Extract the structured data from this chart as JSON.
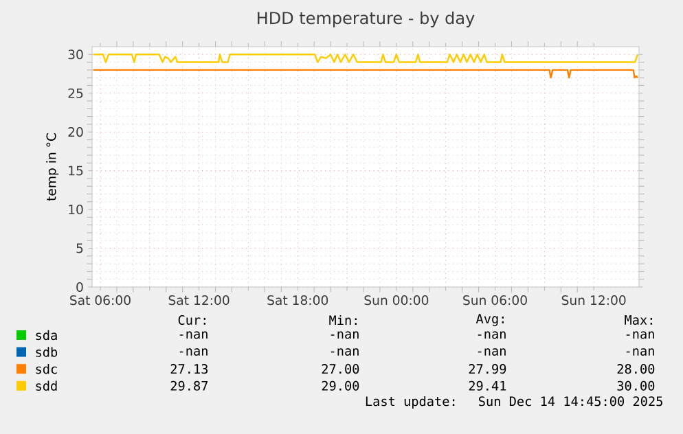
{
  "chart_data": {
    "type": "line",
    "title": "HDD temperature - by day",
    "ylabel": "temp in °C",
    "xlim": [
      "2025-12-13T05:30",
      "2025-12-14T14:45"
    ],
    "ylim": [
      0,
      31
    ],
    "xticks": [
      {
        "value": "2025-12-13T06:00",
        "label": "Sat 06:00"
      },
      {
        "value": "2025-12-13T09:00",
        "label": null
      },
      {
        "value": "2025-12-13T12:00",
        "label": "Sat 12:00"
      },
      {
        "value": "2025-12-13T15:00",
        "label": null
      },
      {
        "value": "2025-12-13T18:00",
        "label": "Sat 18:00"
      },
      {
        "value": "2025-12-13T21:00",
        "label": null
      },
      {
        "value": "2025-12-14T00:00",
        "label": "Sun 00:00"
      },
      {
        "value": "2025-12-14T03:00",
        "label": null
      },
      {
        "value": "2025-12-14T06:00",
        "label": "Sun 06:00"
      },
      {
        "value": "2025-12-14T09:00",
        "label": null
      },
      {
        "value": "2025-12-14T12:00",
        "label": "Sun 12:00"
      }
    ],
    "yticks": [
      0,
      5,
      10,
      15,
      20,
      25,
      30
    ],
    "grid": true,
    "legend": "bottom",
    "line_style": "solid",
    "marker": "none",
    "series": [
      {
        "name": "sda",
        "color": "#00cc00"
      },
      {
        "name": "sdb",
        "color": "#0066b3"
      },
      {
        "name": "sdc",
        "color": "#ff8000",
        "x": [
          "2025-12-13T05:34",
          "2025-12-14T09:18",
          "2025-12-14T09:23",
          "2025-12-14T09:30",
          "2025-12-14T10:24",
          "2025-12-14T10:30",
          "2025-12-14T10:36",
          "2025-12-14T14:24",
          "2025-12-14T14:29",
          "2025-12-14T14:35",
          "2025-12-14T14:40"
        ],
        "values": [
          28,
          28,
          27,
          28,
          28,
          27,
          28,
          28,
          27,
          27.2,
          27
        ]
      },
      {
        "name": "sdd",
        "color": "#ffcc00",
        "x": [
          "2025-12-13T05:34",
          "2025-12-13T06:10",
          "2025-12-13T06:20",
          "2025-12-13T06:30",
          "2025-12-13T07:55",
          "2025-12-13T08:04",
          "2025-12-13T08:10",
          "2025-12-13T09:35",
          "2025-12-13T09:47",
          "2025-12-13T09:56",
          "2025-12-13T10:08",
          "2025-12-13T10:17",
          "2025-12-13T10:34",
          "2025-12-13T10:41",
          "2025-12-13T13:11",
          "2025-12-13T13:16",
          "2025-12-13T13:25",
          "2025-12-13T13:45",
          "2025-12-13T13:53",
          "2025-12-13T19:02",
          "2025-12-13T19:13",
          "2025-12-13T19:25",
          "2025-12-13T19:43",
          "2025-12-13T20:00",
          "2025-12-13T20:13",
          "2025-12-13T20:25",
          "2025-12-13T20:37",
          "2025-12-13T20:53",
          "2025-12-13T21:07",
          "2025-12-13T21:23",
          "2025-12-13T21:37",
          "2025-12-13T23:04",
          "2025-12-13T23:11",
          "2025-12-13T23:20",
          "2025-12-13T23:50",
          "2025-12-14T00:00",
          "2025-12-14T00:10",
          "2025-12-14T01:10",
          "2025-12-14T01:19",
          "2025-12-14T01:26",
          "2025-12-14T03:05",
          "2025-12-14T03:15",
          "2025-12-14T03:28",
          "2025-12-14T03:40",
          "2025-12-14T03:53",
          "2025-12-14T04:05",
          "2025-12-14T04:17",
          "2025-12-14T04:30",
          "2025-12-14T04:43",
          "2025-12-14T04:55",
          "2025-12-14T05:08",
          "2025-12-14T05:20",
          "2025-12-14T05:30",
          "2025-12-14T06:20",
          "2025-12-14T06:26",
          "2025-12-14T06:35",
          "2025-12-14T14:30",
          "2025-12-14T14:40"
        ],
        "values": [
          30,
          30,
          29,
          30,
          30,
          29,
          30,
          30,
          29,
          29.7,
          29.5,
          29,
          29.7,
          29,
          29,
          30,
          29,
          29,
          30,
          30,
          29,
          29.7,
          29.5,
          30,
          29,
          30,
          29,
          30,
          29,
          30,
          29,
          29,
          30,
          29,
          29,
          30,
          29,
          29,
          30,
          29,
          29,
          30,
          29,
          30,
          29,
          30,
          29,
          30,
          29,
          30,
          29,
          30,
          29,
          29,
          30,
          29,
          29,
          30
        ]
      }
    ],
    "annotations": [
      "Cur:",
      "Min:",
      "Avg:",
      "Max:",
      "-nan",
      "-nan",
      "-nan",
      "-nan",
      "-nan",
      "-nan",
      "-nan",
      "-nan",
      "27.13",
      "27.00",
      "27.99",
      "28.00",
      "29.87",
      "29.00",
      "29.41",
      "30.00",
      "Last update:  Sun Dec 14 14:45:00 2025"
    ]
  }
}
